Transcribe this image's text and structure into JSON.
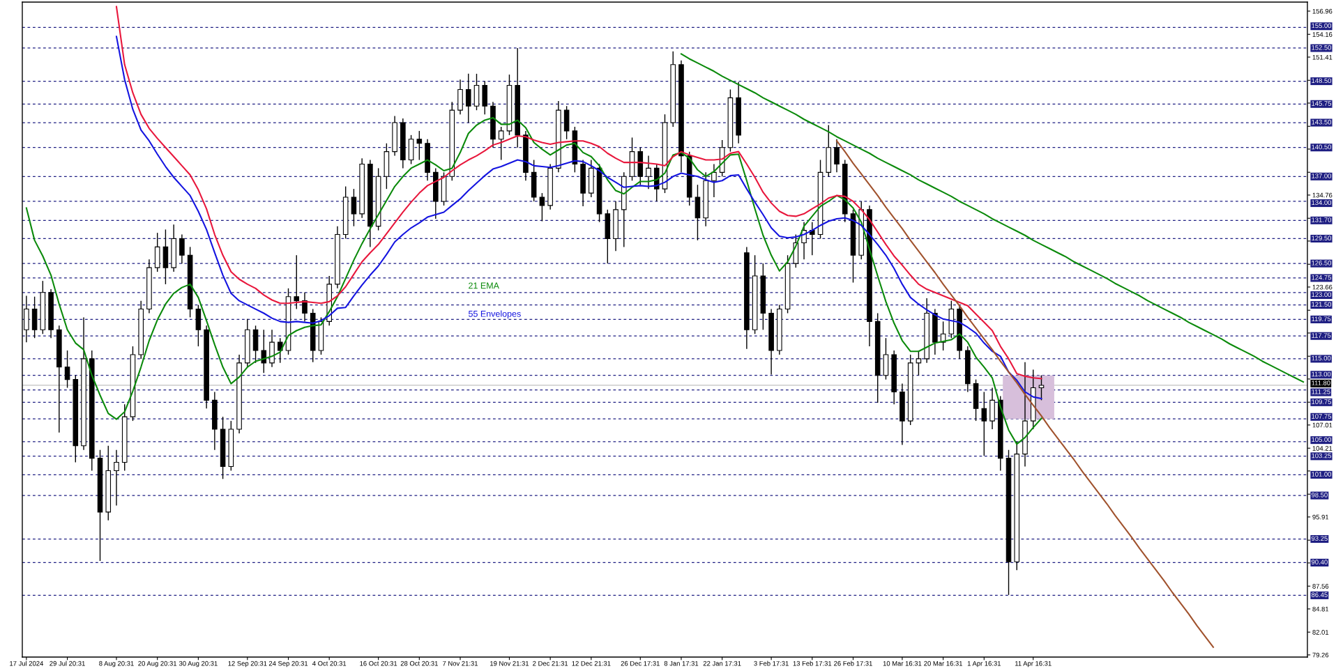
{
  "chart_data": {
    "type": "candlestick",
    "color": "#000000",
    "categories": [
      "17 Jul 2024",
      null,
      null,
      null,
      null,
      "29 Jul 20:31",
      null,
      null,
      null,
      null,
      null,
      "8 Aug 20:31",
      null,
      null,
      null,
      null,
      "20 Aug 20:31",
      null,
      null,
      null,
      null,
      "30 Aug 20:31",
      null,
      null,
      null,
      null,
      null,
      "12 Sep 20:31",
      null,
      null,
      null,
      null,
      "24 Sep 20:31",
      null,
      null,
      null,
      null,
      "4 Oct 20:31",
      null,
      null,
      null,
      null,
      null,
      "16 Oct 20:31",
      null,
      null,
      null,
      null,
      "28 Oct 20:31",
      null,
      null,
      null,
      null,
      "7 Nov 21:31",
      null,
      null,
      null,
      null,
      null,
      "19 Nov 21:31",
      null,
      null,
      null,
      null,
      "2 Dec 21:31",
      null,
      null,
      null,
      null,
      "12 Dec 21:31",
      null,
      null,
      null,
      null,
      null,
      "26 Dec 17:31",
      null,
      null,
      null,
      null,
      "8 Jan 17:31",
      null,
      null,
      null,
      null,
      "22 Jan 17:31",
      null,
      null,
      null,
      null,
      null,
      "3 Feb 17:31",
      null,
      null,
      null,
      null,
      "13 Feb 17:31",
      null,
      null,
      null,
      null,
      "26 Feb 17:31",
      null,
      null,
      null,
      null,
      null,
      "10 Mar 16:31",
      null,
      null,
      null,
      null,
      "20 Mar 16:31",
      null,
      null,
      null,
      null,
      "1 Apr 16:31",
      null,
      null,
      null,
      null,
      null,
      "11 Apr 16:31",
      null,
      null,
      null,
      null,
      null,
      null,
      null,
      null,
      null,
      null,
      null,
      null,
      null,
      null,
      null,
      null,
      null,
      null,
      null,
      null,
      null,
      null,
      null,
      null,
      null,
      null,
      null,
      null,
      null,
      null,
      null,
      null,
      null
    ],
    "ohlc": [
      [
        118.5,
        122.6,
        117.0,
        121.0
      ],
      [
        121.0,
        122.5,
        117.5,
        118.5
      ],
      [
        118.5,
        124.4,
        118.0,
        123.0
      ],
      [
        123.0,
        123.4,
        117.5,
        118.5
      ],
      [
        118.5,
        119.0,
        106.1,
        114.0
      ],
      [
        114.0,
        116.0,
        111.5,
        112.5
      ],
      [
        112.5,
        113.0,
        102.5,
        104.5
      ],
      [
        104.5,
        120.0,
        104.0,
        115.0
      ],
      [
        115.0,
        116.0,
        101.5,
        103.0
      ],
      [
        103.0,
        104.0,
        90.6,
        96.5
      ],
      [
        96.5,
        104.5,
        95.5,
        101.5
      ],
      [
        101.5,
        104.0,
        97.3,
        102.5
      ],
      [
        102.5,
        109.5,
        101.5,
        108.0
      ],
      [
        108.0,
        116.5,
        107.5,
        115.5
      ],
      [
        115.5,
        122.0,
        115.0,
        121.0
      ],
      [
        121.0,
        127.0,
        120.5,
        126.0
      ],
      [
        126.0,
        130.2,
        125.5,
        128.5
      ],
      [
        128.5,
        130.6,
        124.0,
        126.0
      ],
      [
        126.0,
        131.2,
        125.5,
        129.5
      ],
      [
        129.5,
        130.0,
        126.5,
        127.5
      ],
      [
        127.5,
        128.5,
        120.0,
        121.0
      ],
      [
        121.0,
        121.5,
        116.5,
        118.5
      ],
      [
        118.5,
        119.0,
        109.0,
        110.0
      ],
      [
        110.0,
        111.0,
        104.0,
        106.5
      ],
      [
        106.5,
        108.0,
        100.5,
        102.0
      ],
      [
        102.0,
        107.5,
        101.5,
        106.5
      ],
      [
        106.5,
        115.5,
        106.0,
        114.5
      ],
      [
        114.5,
        119.8,
        114.0,
        118.5
      ],
      [
        118.5,
        119.0,
        114.5,
        116.0
      ],
      [
        116.0,
        118.5,
        113.3,
        114.5
      ],
      [
        114.5,
        118.5,
        114.0,
        117.0
      ],
      [
        117.0,
        117.5,
        114.5,
        116.0
      ],
      [
        116.0,
        123.5,
        115.5,
        122.5
      ],
      [
        122.5,
        127.5,
        121.0,
        122.0
      ],
      [
        122.0,
        123.0,
        119.5,
        120.5
      ],
      [
        120.5,
        121.0,
        114.6,
        116.0
      ],
      [
        116.0,
        120.0,
        115.5,
        119.5
      ],
      [
        119.5,
        125.0,
        119.0,
        124.0
      ],
      [
        124.0,
        131.0,
        123.5,
        130.0
      ],
      [
        130.0,
        135.8,
        129.5,
        134.5
      ],
      [
        134.5,
        135.5,
        131.0,
        132.5
      ],
      [
        132.5,
        139.2,
        132.0,
        138.5
      ],
      [
        138.5,
        139.0,
        128.5,
        131.0
      ],
      [
        131.0,
        138.0,
        130.5,
        137.0
      ],
      [
        137.0,
        141.0,
        135.5,
        140.0
      ],
      [
        140.0,
        144.3,
        139.5,
        143.5
      ],
      [
        143.5,
        144.0,
        138.0,
        139.0
      ],
      [
        139.0,
        142.0,
        138.5,
        141.5
      ],
      [
        141.5,
        142.5,
        139.0,
        141.0
      ],
      [
        141.0,
        141.5,
        136.5,
        137.5
      ],
      [
        137.5,
        138.0,
        131.9,
        134.0
      ],
      [
        134.0,
        137.5,
        133.5,
        137.0
      ],
      [
        137.0,
        146.0,
        136.5,
        145.0
      ],
      [
        145.0,
        148.7,
        144.5,
        147.5
      ],
      [
        147.5,
        149.4,
        143.5,
        145.5
      ],
      [
        145.5,
        149.4,
        145.0,
        148.0
      ],
      [
        148.0,
        148.5,
        144.5,
        145.5
      ],
      [
        145.5,
        146.0,
        140.5,
        141.5
      ],
      [
        141.5,
        143.0,
        139.0,
        142.5
      ],
      [
        142.5,
        149.3,
        142.0,
        148.0
      ],
      [
        148.0,
        152.5,
        140.5,
        142.0
      ],
      [
        142.0,
        142.5,
        136.5,
        137.5
      ],
      [
        137.5,
        139.0,
        134.0,
        134.5
      ],
      [
        134.5,
        135.0,
        131.6,
        133.5
      ],
      [
        133.5,
        138.5,
        133.0,
        138.0
      ],
      [
        138.0,
        146.1,
        137.5,
        145.0
      ],
      [
        145.0,
        145.5,
        141.5,
        142.5
      ],
      [
        142.5,
        143.0,
        137.5,
        138.5
      ],
      [
        138.5,
        139.0,
        133.4,
        135.0
      ],
      [
        135.0,
        139.0,
        134.5,
        138.0
      ],
      [
        138.0,
        138.5,
        131.5,
        132.5
      ],
      [
        132.5,
        133.0,
        126.5,
        129.5
      ],
      [
        129.5,
        134.0,
        128.0,
        133.0
      ],
      [
        133.0,
        137.5,
        128.5,
        137.0
      ],
      [
        137.0,
        141.7,
        136.5,
        140.0
      ],
      [
        140.0,
        140.5,
        136.0,
        137.0
      ],
      [
        137.0,
        139.5,
        135.5,
        138.0
      ],
      [
        138.0,
        138.5,
        134.0,
        135.5
      ],
      [
        135.5,
        144.5,
        135.0,
        143.5
      ],
      [
        143.5,
        152.1,
        143.0,
        150.5
      ],
      [
        150.5,
        151.0,
        137.5,
        139.5
      ],
      [
        139.5,
        140.0,
        133.5,
        134.5
      ],
      [
        134.5,
        136.0,
        129.3,
        132.0
      ],
      [
        132.0,
        137.5,
        131.0,
        136.5
      ],
      [
        136.5,
        138.5,
        134.5,
        137.5
      ],
      [
        137.5,
        141.4,
        137.0,
        140.5
      ],
      [
        140.5,
        147.5,
        140.0,
        146.5
      ],
      [
        146.5,
        148.4,
        141.0,
        142.0
      ],
      [
        127.8,
        128.5,
        116.2,
        118.5
      ],
      [
        118.5,
        127.5,
        118.0,
        125.0
      ],
      [
        125.0,
        126.5,
        118.5,
        120.5
      ],
      [
        120.5,
        121.0,
        113.1,
        116.0
      ],
      [
        116.0,
        121.5,
        115.5,
        121.0
      ],
      [
        121.0,
        127.5,
        120.5,
        126.5
      ],
      [
        126.5,
        130.0,
        126.0,
        129.0
      ],
      [
        129.0,
        131.5,
        127.0,
        130.5
      ],
      [
        130.5,
        131.5,
        127.5,
        130.0
      ],
      [
        130.0,
        139.0,
        129.5,
        137.5
      ],
      [
        137.5,
        143.2,
        137.0,
        140.5
      ],
      [
        140.5,
        141.5,
        137.5,
        138.5
      ],
      [
        138.5,
        139.0,
        131.5,
        132.5
      ],
      [
        132.5,
        133.0,
        124.2,
        127.5
      ],
      [
        127.5,
        134.0,
        127.0,
        133.0
      ],
      [
        133.0,
        133.5,
        116.5,
        119.5
      ],
      [
        119.5,
        120.5,
        109.7,
        113.0
      ],
      [
        113.0,
        117.5,
        112.5,
        115.5
      ],
      [
        115.5,
        116.0,
        109.5,
        111.0
      ],
      [
        111.0,
        112.0,
        104.6,
        107.5
      ],
      [
        107.5,
        115.5,
        107.0,
        114.5
      ],
      [
        114.5,
        116.0,
        113.0,
        115.0
      ],
      [
        115.0,
        122.3,
        114.5,
        120.5
      ],
      [
        120.5,
        121.0,
        115.5,
        117.0
      ],
      [
        117.0,
        119.5,
        116.0,
        118.0
      ],
      [
        118.0,
        122.0,
        117.5,
        121.0
      ],
      [
        121.0,
        121.5,
        115.0,
        116.0
      ],
      [
        116.0,
        116.5,
        111.0,
        112.0
      ],
      [
        112.0,
        112.5,
        107.5,
        109.0
      ],
      [
        109.0,
        111.0,
        103.3,
        107.5
      ],
      [
        107.5,
        111.5,
        106.5,
        110.0
      ],
      [
        110.0,
        110.5,
        101.5,
        103.0
      ],
      [
        103.0,
        104.0,
        86.5,
        90.5
      ],
      [
        90.5,
        105.0,
        89.5,
        103.5
      ],
      [
        103.5,
        114.6,
        102.0,
        107.5
      ],
      [
        107.5,
        113.7,
        106.5,
        111.5
      ],
      [
        111.5,
        113.0,
        110.0,
        111.8
      ],
      null,
      null,
      null,
      null,
      null,
      null,
      null,
      null,
      null,
      null,
      null,
      null,
      null,
      null,
      null,
      null,
      null,
      null,
      null,
      null,
      null,
      null,
      null,
      null,
      null,
      null,
      null,
      null,
      null,
      null,
      null,
      null
    ],
    "series": [
      {
        "type": "line",
        "name": "21 EMA",
        "color": "#0b8a0b",
        "values": [
          133.2,
          129.3,
          127.4,
          125.1,
          121.6,
          118.5,
          116.9,
          116.1,
          113.0,
          110.6,
          108.4,
          107.7,
          108.6,
          111.1,
          114.0,
          117.2,
          119.7,
          121.6,
          122.9,
          123.6,
          124.0,
          122.4,
          119.6,
          116.7,
          114.0,
          112.0,
          112.8,
          114.0,
          114.7,
          115.0,
          115.3,
          115.8,
          117.8,
          118.4,
          118.8,
          119.0,
          119.1,
          120.7,
          122.5,
          124.7,
          126.9,
          128.9,
          130.7,
          132.4,
          134.1,
          135.8,
          137.0,
          138.0,
          138.5,
          139.0,
          138.4,
          137.7,
          138.0,
          139.9,
          142.2,
          143.2,
          143.8,
          144.1,
          143.3,
          143.3,
          143.8,
          142.9,
          141.1,
          140.3,
          139.6,
          140.2,
          140.8,
          141.0,
          139.9,
          139.4,
          138.3,
          136.6,
          135.3,
          134.9,
          135.7,
          136.4,
          136.4,
          136.6,
          137.4,
          139.6,
          139.9,
          139.2,
          137.8,
          137.0,
          137.6,
          138.6,
          139.6,
          139.7,
          136.5,
          133.1,
          129.9,
          127.5,
          125.6,
          126.7,
          128.6,
          131.0,
          132.2,
          133.4,
          134.0,
          134.7,
          134.2,
          133.2,
          131.5,
          128.2,
          125.0,
          121.9,
          119.3,
          117.2,
          115.9,
          115.9,
          116.4,
          116.9,
          117.1,
          117.3,
          118.0,
          117.0,
          115.2,
          114.0,
          112.7,
          109.2,
          106.4,
          104.7,
          105.5,
          106.7,
          107.8,
          null,
          null,
          null,
          null,
          null,
          null,
          null,
          null,
          null,
          null,
          null,
          null,
          null,
          null,
          null,
          null,
          null,
          null,
          null,
          null,
          null,
          null,
          null,
          null,
          null,
          null,
          null,
          null,
          null,
          null,
          null,
          null
        ]
      },
      {
        "type": "line",
        "color": "#e8173c",
        "values": [
          null,
          null,
          null,
          null,
          null,
          null,
          null,
          null,
          null,
          null,
          null,
          157.5,
          150.5,
          147.1,
          144.5,
          142.8,
          141.6,
          140.5,
          139.4,
          138.3,
          137.2,
          135.4,
          133.1,
          130.0,
          127.5,
          125.5,
          124.6,
          124.0,
          123.5,
          122.7,
          122.1,
          121.7,
          121.7,
          121.8,
          121.9,
          121.8,
          121.7,
          121.9,
          122.6,
          123.7,
          125.2,
          126.7,
          127.8,
          128.8,
          130.1,
          131.4,
          132.7,
          133.9,
          135.0,
          135.9,
          136.4,
          136.9,
          137.7,
          138.4,
          139.0,
          139.5,
          140.1,
          140.8,
          141.1,
          141.5,
          141.9,
          141.8,
          141.4,
          141.1,
          140.9,
          141.1,
          141.2,
          141.3,
          141.3,
          141.0,
          140.6,
          139.8,
          139.2,
          138.7,
          138.7,
          138.7,
          138.6,
          138.5,
          138.3,
          139.4,
          140.0,
          139.6,
          139.3,
          139.0,
          139.0,
          139.1,
          139.8,
          140.0,
          138.5,
          136.9,
          135.1,
          133.8,
          132.8,
          132.3,
          132.2,
          132.5,
          133.1,
          133.7,
          134.4,
          134.7,
          134.6,
          134.0,
          133.0,
          131.8,
          130.3,
          128.8,
          127.4,
          126.3,
          125.1,
          124.0,
          123.4,
          123.0,
          122.6,
          122.2,
          121.8,
          121.4,
          120.4,
          119.4,
          118.4,
          116.5,
          115.0,
          113.2,
          112.9,
          112.7,
          112.6,
          null,
          null,
          null,
          null,
          null,
          null,
          null,
          null,
          null,
          null,
          null,
          null,
          null,
          null,
          null,
          null,
          null,
          null,
          null,
          null,
          null,
          null,
          null,
          null,
          null,
          null,
          null,
          null,
          null,
          null,
          null,
          null
        ]
      },
      {
        "type": "line",
        "name": "55 Envelopes",
        "color": "#1414e0",
        "values": [
          null,
          null,
          null,
          null,
          null,
          null,
          null,
          null,
          null,
          null,
          null,
          153.9,
          148.7,
          145.1,
          142.6,
          141.3,
          139.7,
          138.2,
          136.9,
          135.8,
          134.7,
          132.8,
          130.6,
          127.8,
          125.1,
          122.9,
          122.0,
          121.5,
          121.0,
          120.5,
          119.9,
          119.5,
          119.4,
          119.5,
          119.4,
          119.3,
          119.6,
          120.2,
          121.1,
          121.2,
          122.6,
          123.9,
          125.1,
          126.2,
          127.6,
          129.1,
          130.0,
          130.8,
          131.4,
          132.1,
          132.4,
          132.7,
          133.5,
          134.3,
          135.3,
          136.2,
          137.1,
          137.9,
          138.2,
          138.6,
          139.0,
          138.8,
          138.3,
          138.2,
          138.1,
          138.3,
          138.6,
          138.9,
          138.8,
          138.3,
          137.7,
          136.9,
          136.3,
          135.7,
          135.8,
          135.9,
          135.8,
          135.9,
          136.3,
          137.0,
          137.4,
          137.2,
          137.0,
          136.6,
          136.3,
          136.5,
          137.1,
          137.2,
          135.5,
          133.9,
          132.4,
          130.8,
          129.8,
          129.6,
          129.7,
          130.0,
          130.5,
          131.1,
          131.6,
          131.9,
          132.0,
          131.7,
          131.1,
          130.0,
          128.8,
          127.5,
          125.9,
          124.0,
          122.4,
          121.6,
          120.9,
          120.3,
          119.8,
          119.6,
          119.4,
          118.8,
          118.1,
          116.9,
          115.9,
          115.3,
          113.4,
          112.4,
          111.0,
          110.4,
          110.2,
          null,
          null,
          null,
          null,
          null,
          null,
          null,
          null,
          null,
          null,
          null,
          null,
          null,
          null,
          null,
          null,
          null,
          null,
          null,
          null,
          null,
          null,
          null,
          null,
          null,
          null,
          null,
          null,
          null,
          null,
          null,
          null
        ]
      },
      {
        "type": "line",
        "color": "#0b8a0b",
        "values": [
          null,
          null,
          null,
          null,
          null,
          null,
          null,
          null,
          null,
          null,
          null,
          null,
          null,
          null,
          null,
          null,
          null,
          null,
          null,
          null,
          null,
          null,
          null,
          null,
          null,
          null,
          null,
          null,
          null,
          null,
          null,
          null,
          null,
          null,
          null,
          null,
          null,
          null,
          null,
          null,
          null,
          null,
          null,
          null,
          null,
          null,
          null,
          null,
          null,
          null,
          null,
          null,
          null,
          null,
          null,
          null,
          null,
          null,
          null,
          null,
          null,
          null,
          null,
          null,
          null,
          null,
          null,
          null,
          null,
          null,
          null,
          null,
          null,
          null,
          null,
          null,
          null,
          null,
          null,
          null,
          151.8,
          151.2,
          150.7,
          150.2,
          149.7,
          149.1,
          148.6,
          148.1,
          147.6,
          147.1,
          146.5,
          146.0,
          145.5,
          145.0,
          144.5,
          143.9,
          143.4,
          142.9,
          142.4,
          141.8,
          141.3,
          140.8,
          140.3,
          139.8,
          139.2,
          138.7,
          138.2,
          137.7,
          137.2,
          136.6,
          136.1,
          135.6,
          135.1,
          134.6,
          134.0,
          133.5,
          133.0,
          132.5,
          131.9,
          131.4,
          130.9,
          130.4,
          129.9,
          129.3,
          128.8,
          128.3,
          127.8,
          127.3,
          126.7,
          126.2,
          125.7,
          125.2,
          124.7,
          124.1,
          123.6,
          123.1,
          122.6,
          122.0,
          121.5,
          121.0,
          120.5,
          120.0,
          119.4,
          118.9,
          118.4,
          117.9,
          117.4,
          116.8,
          116.3,
          115.8,
          115.3,
          114.7,
          114.2,
          113.7,
          113.2,
          112.7,
          112.2
        ]
      },
      {
        "type": "line",
        "color": "#a0522d",
        "values": [
          null,
          null,
          null,
          null,
          null,
          null,
          null,
          null,
          null,
          null,
          null,
          null,
          null,
          null,
          null,
          null,
          null,
          null,
          null,
          null,
          null,
          null,
          null,
          null,
          null,
          null,
          null,
          null,
          null,
          null,
          null,
          null,
          null,
          null,
          null,
          null,
          null,
          null,
          null,
          null,
          null,
          null,
          null,
          null,
          null,
          null,
          null,
          null,
          null,
          null,
          null,
          null,
          null,
          null,
          null,
          null,
          null,
          null,
          null,
          null,
          null,
          null,
          null,
          null,
          null,
          null,
          null,
          null,
          null,
          null,
          null,
          null,
          null,
          null,
          null,
          null,
          null,
          null,
          null,
          null,
          null,
          null,
          null,
          null,
          null,
          null,
          null,
          null,
          null,
          null,
          null,
          null,
          null,
          null,
          null,
          null,
          null,
          null,
          null,
          141.3,
          140.0,
          138.6,
          137.3,
          136.0,
          134.7,
          133.3,
          132.0,
          130.7,
          129.3,
          128.0,
          126.7,
          125.4,
          124.0,
          122.7,
          121.4,
          120.0,
          118.7,
          117.4,
          116.1,
          114.7,
          113.4,
          112.1,
          110.7,
          109.4,
          108.1,
          106.7,
          105.4,
          104.1,
          102.8,
          101.4,
          100.1,
          98.8,
          97.5,
          96.1,
          94.8,
          93.5,
          92.1,
          90.8,
          89.5,
          88.2,
          86.8,
          85.5,
          84.2,
          82.8,
          81.5,
          80.2,
          null,
          null,
          null,
          null,
          null,
          null,
          null,
          null,
          null,
          null,
          null
        ]
      }
    ],
    "bands": [
      {
        "axis": "y",
        "from": 107.75,
        "to": 113.0,
        "color": "#d7bfdb"
      }
    ],
    "ylim": [
      79.0,
      158.05
    ],
    "yticks": [
      79.26,
      82.01,
      84.81,
      87.56,
      {
        "value": 90.36,
        "label": null
      },
      {
        "value": 93.11,
        "label": null
      },
      95.91,
      {
        "value": 98.66,
        "label": null
      },
      {
        "value": 101.46,
        "label": null
      },
      104.21,
      107.01,
      {
        "value": 109.76,
        "label": null
      },
      {
        "value": 112.56,
        "label": null
      },
      {
        "value": 115.31,
        "label": null
      },
      {
        "value": 118.11,
        "label": null
      },
      {
        "value": 120.86,
        "label": null
      },
      123.66,
      {
        "value": 126.41,
        "label": null
      },
      {
        "value": 129.21,
        "label": null
      },
      {
        "value": 131.96,
        "label": null
      },
      134.76,
      {
        "value": 137.51,
        "label": null
      },
      {
        "value": 140.31,
        "label": null
      },
      {
        "value": 143.06,
        "label": null
      },
      {
        "value": 145.86,
        "label": null
      },
      {
        "value": 148.61,
        "label": null
      },
      151.41,
      154.16,
      156.96
    ],
    "ref_lines": [
      {
        "axis": "y",
        "value": 155.0,
        "label": "155.00",
        "color": "#1e1e82",
        "line_style": "dashed"
      },
      {
        "axis": "y",
        "value": 152.5,
        "label": "152.50",
        "color": "#1e1e82",
        "line_style": "dashed"
      },
      {
        "axis": "y",
        "value": 148.5,
        "label": "148.50",
        "color": "#1e1e82",
        "line_style": "dashed"
      },
      {
        "axis": "y",
        "value": 145.75,
        "label": "145.75",
        "color": "#1e1e82",
        "line_style": "dashed"
      },
      {
        "axis": "y",
        "value": 143.5,
        "label": "143.50",
        "color": "#1e1e82",
        "line_style": "dashed"
      },
      {
        "axis": "y",
        "value": 140.5,
        "label": "140.50",
        "color": "#1e1e82",
        "line_style": "dashed"
      },
      {
        "axis": "y",
        "value": 137.0,
        "label": "137.00",
        "color": "#1e1e82",
        "line_style": "dashed"
      },
      {
        "axis": "y",
        "value": 134.0,
        "label": "134.00",
        "color": "#1e1e82",
        "line_style": "dashed"
      },
      {
        "axis": "y",
        "value": 131.7,
        "label": "131.70",
        "color": "#1e1e82",
        "line_style": "dashed"
      },
      {
        "axis": "y",
        "value": 129.5,
        "label": "129.50",
        "color": "#1e1e82",
        "line_style": "dashed"
      },
      {
        "axis": "y",
        "value": 126.5,
        "label": "126.50",
        "color": "#1e1e82",
        "line_style": "dashed"
      },
      {
        "axis": "y",
        "value": 124.75,
        "label": "124.75",
        "color": "#1e1e82",
        "line_style": "dashed"
      },
      {
        "axis": "y",
        "value": 123.0,
        "label": "123.00",
        "color": "#1e1e82",
        "line_style": "dashed"
      },
      {
        "axis": "y",
        "value": 121.5,
        "label": "121.50",
        "color": "#1e1e82",
        "line_style": "dashed"
      },
      {
        "axis": "y",
        "value": 119.75,
        "label": "119.75",
        "color": "#1e1e82",
        "line_style": "dashed"
      },
      {
        "axis": "y",
        "value": 117.75,
        "label": "117.75",
        "color": "#1e1e82",
        "line_style": "dashed"
      },
      {
        "axis": "y",
        "value": 115.0,
        "label": "115.00",
        "color": "#1e1e82",
        "line_style": "dashed"
      },
      {
        "axis": "y",
        "value": 113.0,
        "label": "113.00",
        "color": "#1e1e82",
        "line_style": "dashed"
      },
      {
        "axis": "y",
        "value": 111.8,
        "label": "111.80",
        "color": "#c0c0c0",
        "line_style": "solid"
      },
      {
        "axis": "y",
        "value": 111.25,
        "label": "111.25",
        "color": "#1e1e82",
        "line_style": "dashed"
      },
      {
        "axis": "y",
        "value": 109.75,
        "label": "109.75",
        "color": "#1e1e82",
        "line_style": "dashed"
      },
      {
        "axis": "y",
        "value": 107.75,
        "label": "107.75",
        "color": "#1e1e82",
        "line_style": "dashed"
      },
      {
        "axis": "y",
        "value": 105.0,
        "label": "105.00",
        "color": "#1e1e82",
        "line_style": "dashed"
      },
      {
        "axis": "y",
        "value": 103.25,
        "label": "103.25",
        "color": "#1e1e82",
        "line_style": "dashed"
      },
      {
        "axis": "y",
        "value": 101.0,
        "label": "101.00",
        "color": "#1e1e82",
        "line_style": "dashed"
      },
      {
        "axis": "y",
        "value": 98.5,
        "label": "98.50",
        "color": "#1e1e82",
        "line_style": "dashed"
      },
      {
        "axis": "y",
        "value": 93.25,
        "label": "93.25",
        "color": "#1e1e82",
        "line_style": "dashed"
      },
      {
        "axis": "y",
        "value": 90.4,
        "label": "90.40",
        "color": "#1e1e82",
        "line_style": "dashed"
      },
      {
        "axis": "y",
        "value": 86.45,
        "label": "86.45",
        "color": "#1e1e82",
        "line_style": "dashed"
      }
    ]
  }
}
